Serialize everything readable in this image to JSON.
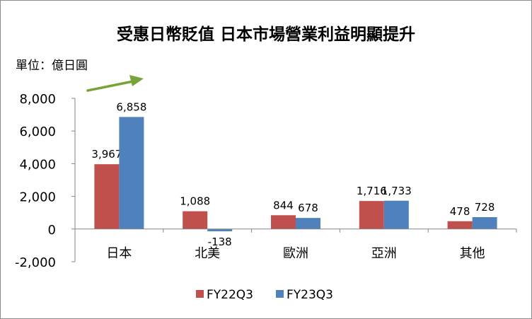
{
  "chart_data": {
    "type": "bar",
    "title": "受惠日幣貶值 日本市場營業利益明顯提升",
    "unit_label": "單位：億日圓",
    "categories": [
      "日本",
      "北美",
      "歐洲",
      "亞洲",
      "其他"
    ],
    "series": [
      {
        "name": "FY22Q3",
        "color": "#c0504d",
        "values": [
          3967,
          1088,
          844,
          1716,
          478
        ]
      },
      {
        "name": "FY23Q3",
        "color": "#4f81bd",
        "values": [
          6858,
          -138,
          678,
          1733,
          728
        ]
      }
    ],
    "value_labels": [
      [
        "3,967",
        "1,088",
        "844",
        "1,716",
        "478"
      ],
      [
        "6,858",
        "-138",
        "678",
        "1,733",
        "728"
      ]
    ],
    "y_ticks": [
      8000,
      6000,
      4000,
      2000,
      0,
      -2000
    ],
    "y_tick_labels": [
      "8,000",
      "6,000",
      "4,000",
      "2,000",
      "0",
      "-2,000"
    ],
    "ylim": [
      -2000,
      8000
    ],
    "legend_position": "bottom",
    "annotation": "green upward arrow above 日本 bars",
    "arrow_color": "#77a337",
    "grid": false
  }
}
